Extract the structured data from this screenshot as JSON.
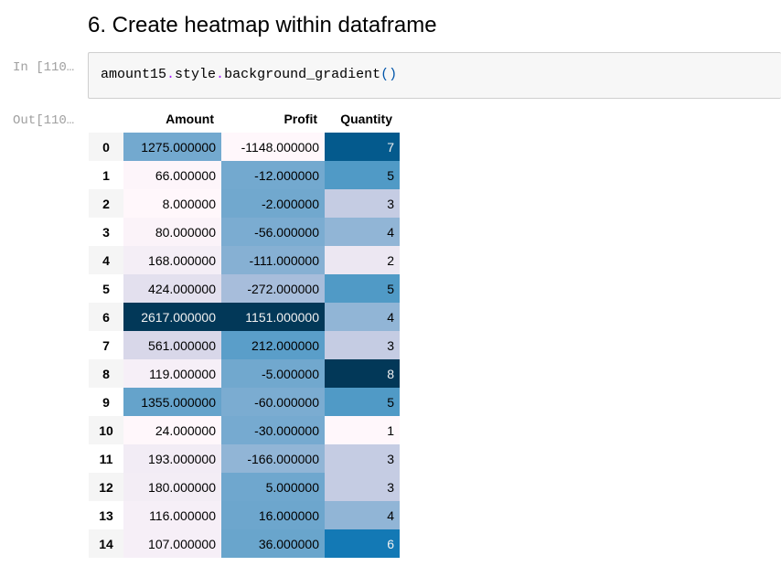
{
  "heading": "6. Create heatmap within dataframe",
  "input_prompt": "In [110…",
  "output_prompt": "Out[110…",
  "code": {
    "var": "amount15",
    "dot1": ".",
    "attr1": "style",
    "dot2": ".",
    "method": "background_gradient",
    "paren_open": "(",
    "paren_close": ")"
  },
  "columns": [
    "Amount",
    "Profit",
    "Quantity"
  ],
  "rows": [
    {
      "index": "0",
      "Amount": "1275.000000",
      "Profit": "-1148.000000",
      "Quantity": "7"
    },
    {
      "index": "1",
      "Amount": "66.000000",
      "Profit": "-12.000000",
      "Quantity": "5"
    },
    {
      "index": "2",
      "Amount": "8.000000",
      "Profit": "-2.000000",
      "Quantity": "3"
    },
    {
      "index": "3",
      "Amount": "80.000000",
      "Profit": "-56.000000",
      "Quantity": "4"
    },
    {
      "index": "4",
      "Amount": "168.000000",
      "Profit": "-111.000000",
      "Quantity": "2"
    },
    {
      "index": "5",
      "Amount": "424.000000",
      "Profit": "-272.000000",
      "Quantity": "5"
    },
    {
      "index": "6",
      "Amount": "2617.000000",
      "Profit": "1151.000000",
      "Quantity": "4"
    },
    {
      "index": "7",
      "Amount": "561.000000",
      "Profit": "212.000000",
      "Quantity": "3"
    },
    {
      "index": "8",
      "Amount": "119.000000",
      "Profit": "-5.000000",
      "Quantity": "8"
    },
    {
      "index": "9",
      "Amount": "1355.000000",
      "Profit": "-60.000000",
      "Quantity": "5"
    },
    {
      "index": "10",
      "Amount": "24.000000",
      "Profit": "-30.000000",
      "Quantity": "1"
    },
    {
      "index": "11",
      "Amount": "193.000000",
      "Profit": "-166.000000",
      "Quantity": "3"
    },
    {
      "index": "12",
      "Amount": "180.000000",
      "Profit": "5.000000",
      "Quantity": "3"
    },
    {
      "index": "13",
      "Amount": "116.000000",
      "Profit": "16.000000",
      "Quantity": "4"
    },
    {
      "index": "14",
      "Amount": "107.000000",
      "Profit": "36.000000",
      "Quantity": "6"
    }
  ],
  "colors": {
    "Amount": [
      "#73a9cf",
      "#fdf5fa",
      "#fff7fb",
      "#fbf3f9",
      "#f4eef6",
      "#e3e0ee",
      "#023858",
      "#d8d7e9",
      "#f6eff7",
      "#65a3cb",
      "#fff7fb",
      "#f2ecf5",
      "#f3edf5",
      "#f6eff7",
      "#f6eff7"
    ],
    "Profit": [
      "#fff7fb",
      "#73a9cf",
      "#71a8ce",
      "#7bacd1",
      "#86b0d3",
      "#a7bddb",
      "#023858",
      "#5a9ec9",
      "#71a8ce",
      "#7bacd1",
      "#76aad0",
      "#91b5d6",
      "#6fa7ce",
      "#6da6cd",
      "#69a5cc"
    ],
    "Quantity": [
      "#045a8d",
      "#509ac6",
      "#c5cce3",
      "#91b5d6",
      "#ece7f2",
      "#509ac6",
      "#91b5d6",
      "#c5cce3",
      "#023858",
      "#509ac6",
      "#fff7fb",
      "#c5cce3",
      "#c5cce3",
      "#91b5d6",
      "#1379b5"
    ]
  }
}
